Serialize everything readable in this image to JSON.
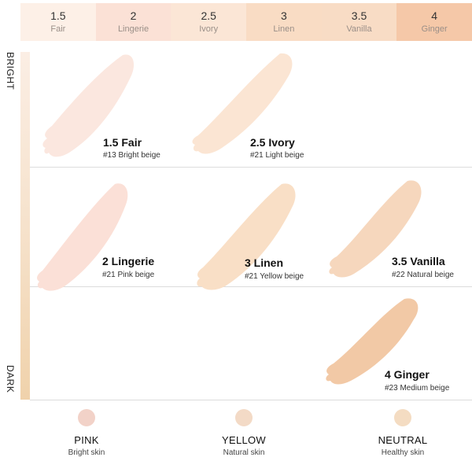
{
  "shade_bar": [
    {
      "num": "1.5",
      "name": "Fair",
      "color": "#fdf0e7"
    },
    {
      "num": "2",
      "name": "Lingerie",
      "color": "#fbe1d6"
    },
    {
      "num": "2.5",
      "name": "Ivory",
      "color": "#fbe6d6"
    },
    {
      "num": "3",
      "name": "Linen",
      "color": "#f9dcc4"
    },
    {
      "num": "3.5",
      "name": "Vanilla",
      "color": "#f8dcc5"
    },
    {
      "num": "4",
      "name": "Ginger",
      "color": "#f5c8a8"
    }
  ],
  "axis": {
    "top": "BRIGHT",
    "bottom": "DARK"
  },
  "swatches": [
    {
      "title": "1.5 Fair",
      "code": "#13 Bright beige",
      "color": "#fbe7df"
    },
    {
      "title": "2.5 Ivory",
      "code": "#21 Light beige",
      "color": "#fbe5d3"
    },
    {
      "title": "2 Lingerie",
      "code": "#21 Pink beige",
      "color": "#fbe0d7"
    },
    {
      "title": "3 Linen",
      "code": "#21 Yellow beige",
      "color": "#f9dfc6"
    },
    {
      "title": "3.5 Vanilla",
      "code": "#22 Natural beige",
      "color": "#f6d7bd"
    },
    {
      "title": "4 Ginger",
      "code": "#23 Medium beige",
      "color": "#f2c9a6"
    }
  ],
  "undertones": [
    {
      "title": "PINK",
      "sub": "Bright skin",
      "color": "#f2d2c8"
    },
    {
      "title": "YELLOW",
      "sub": "Natural skin",
      "color": "#f3dac6"
    },
    {
      "title": "NEUTRAL",
      "sub": "Healthy skin",
      "color": "#f4dcc2"
    }
  ]
}
